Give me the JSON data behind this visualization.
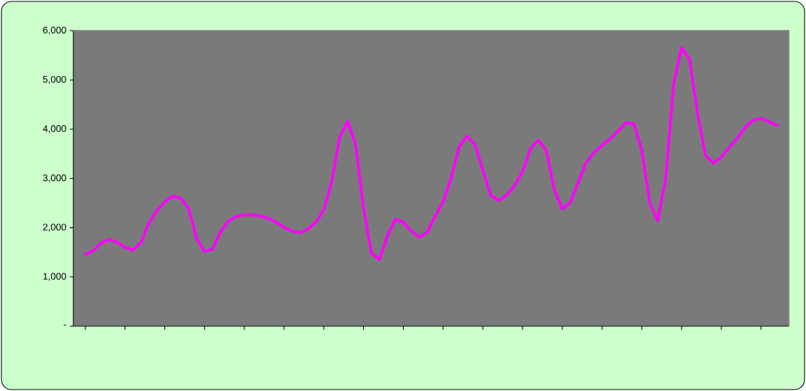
{
  "chart_data": {
    "type": "line",
    "color": "#ff00ff",
    "categories": [
      null,
      null,
      null,
      null,
      null,
      null,
      null,
      null,
      null,
      null,
      null,
      null,
      null,
      null,
      null,
      null,
      null,
      null,
      null,
      null,
      null,
      null,
      null,
      null,
      null,
      null,
      null,
      null,
      null,
      null,
      null,
      null,
      null,
      null,
      null,
      null,
      null,
      null,
      null,
      null,
      null,
      null,
      null,
      null,
      null,
      null,
      null,
      null,
      null,
      null,
      null,
      null,
      null,
      null,
      null,
      null,
      null,
      null,
      null,
      null,
      null,
      null,
      null,
      null,
      null,
      null,
      null,
      null,
      null,
      null,
      null,
      null,
      null,
      null,
      null,
      null,
      null,
      null,
      null,
      null,
      null,
      null,
      null,
      null,
      null,
      null,
      null,
      null
    ],
    "values": [
      1460,
      1530,
      1690,
      1760,
      1700,
      1600,
      1540,
      1700,
      2090,
      2340,
      2520,
      2640,
      2600,
      2390,
      1780,
      1520,
      1560,
      1910,
      2130,
      2230,
      2260,
      2260,
      2240,
      2190,
      2110,
      2010,
      1930,
      1900,
      1970,
      2110,
      2360,
      2930,
      3840,
      4160,
      3690,
      2400,
      1480,
      1350,
      1830,
      2170,
      2110,
      1930,
      1810,
      1900,
      2230,
      2520,
      3000,
      3630,
      3860,
      3690,
      3170,
      2660,
      2550,
      2660,
      2850,
      3140,
      3600,
      3780,
      3560,
      2770,
      2380,
      2510,
      2920,
      3320,
      3530,
      3670,
      3800,
      3960,
      4130,
      4110,
      3570,
      2500,
      2140,
      2990,
      4910,
      5650,
      5420,
      4330,
      3470,
      3310,
      3430,
      3630,
      3810,
      4040,
      4180,
      4220,
      4150,
      4080
    ],
    "ylim": [
      0,
      6000
    ],
    "yticks": [
      {
        "value": 0,
        "label": "-"
      },
      {
        "value": 1000,
        "label": "1,000"
      },
      {
        "value": 2000,
        "label": "2,000"
      },
      {
        "value": 3000,
        "label": "3,000"
      },
      {
        "value": 4000,
        "label": "4,000"
      },
      {
        "value": 5000,
        "label": "5,000"
      },
      {
        "value": 6000,
        "label": "6,000"
      }
    ],
    "grid": false,
    "marker": "none",
    "line_style": "solid"
  }
}
